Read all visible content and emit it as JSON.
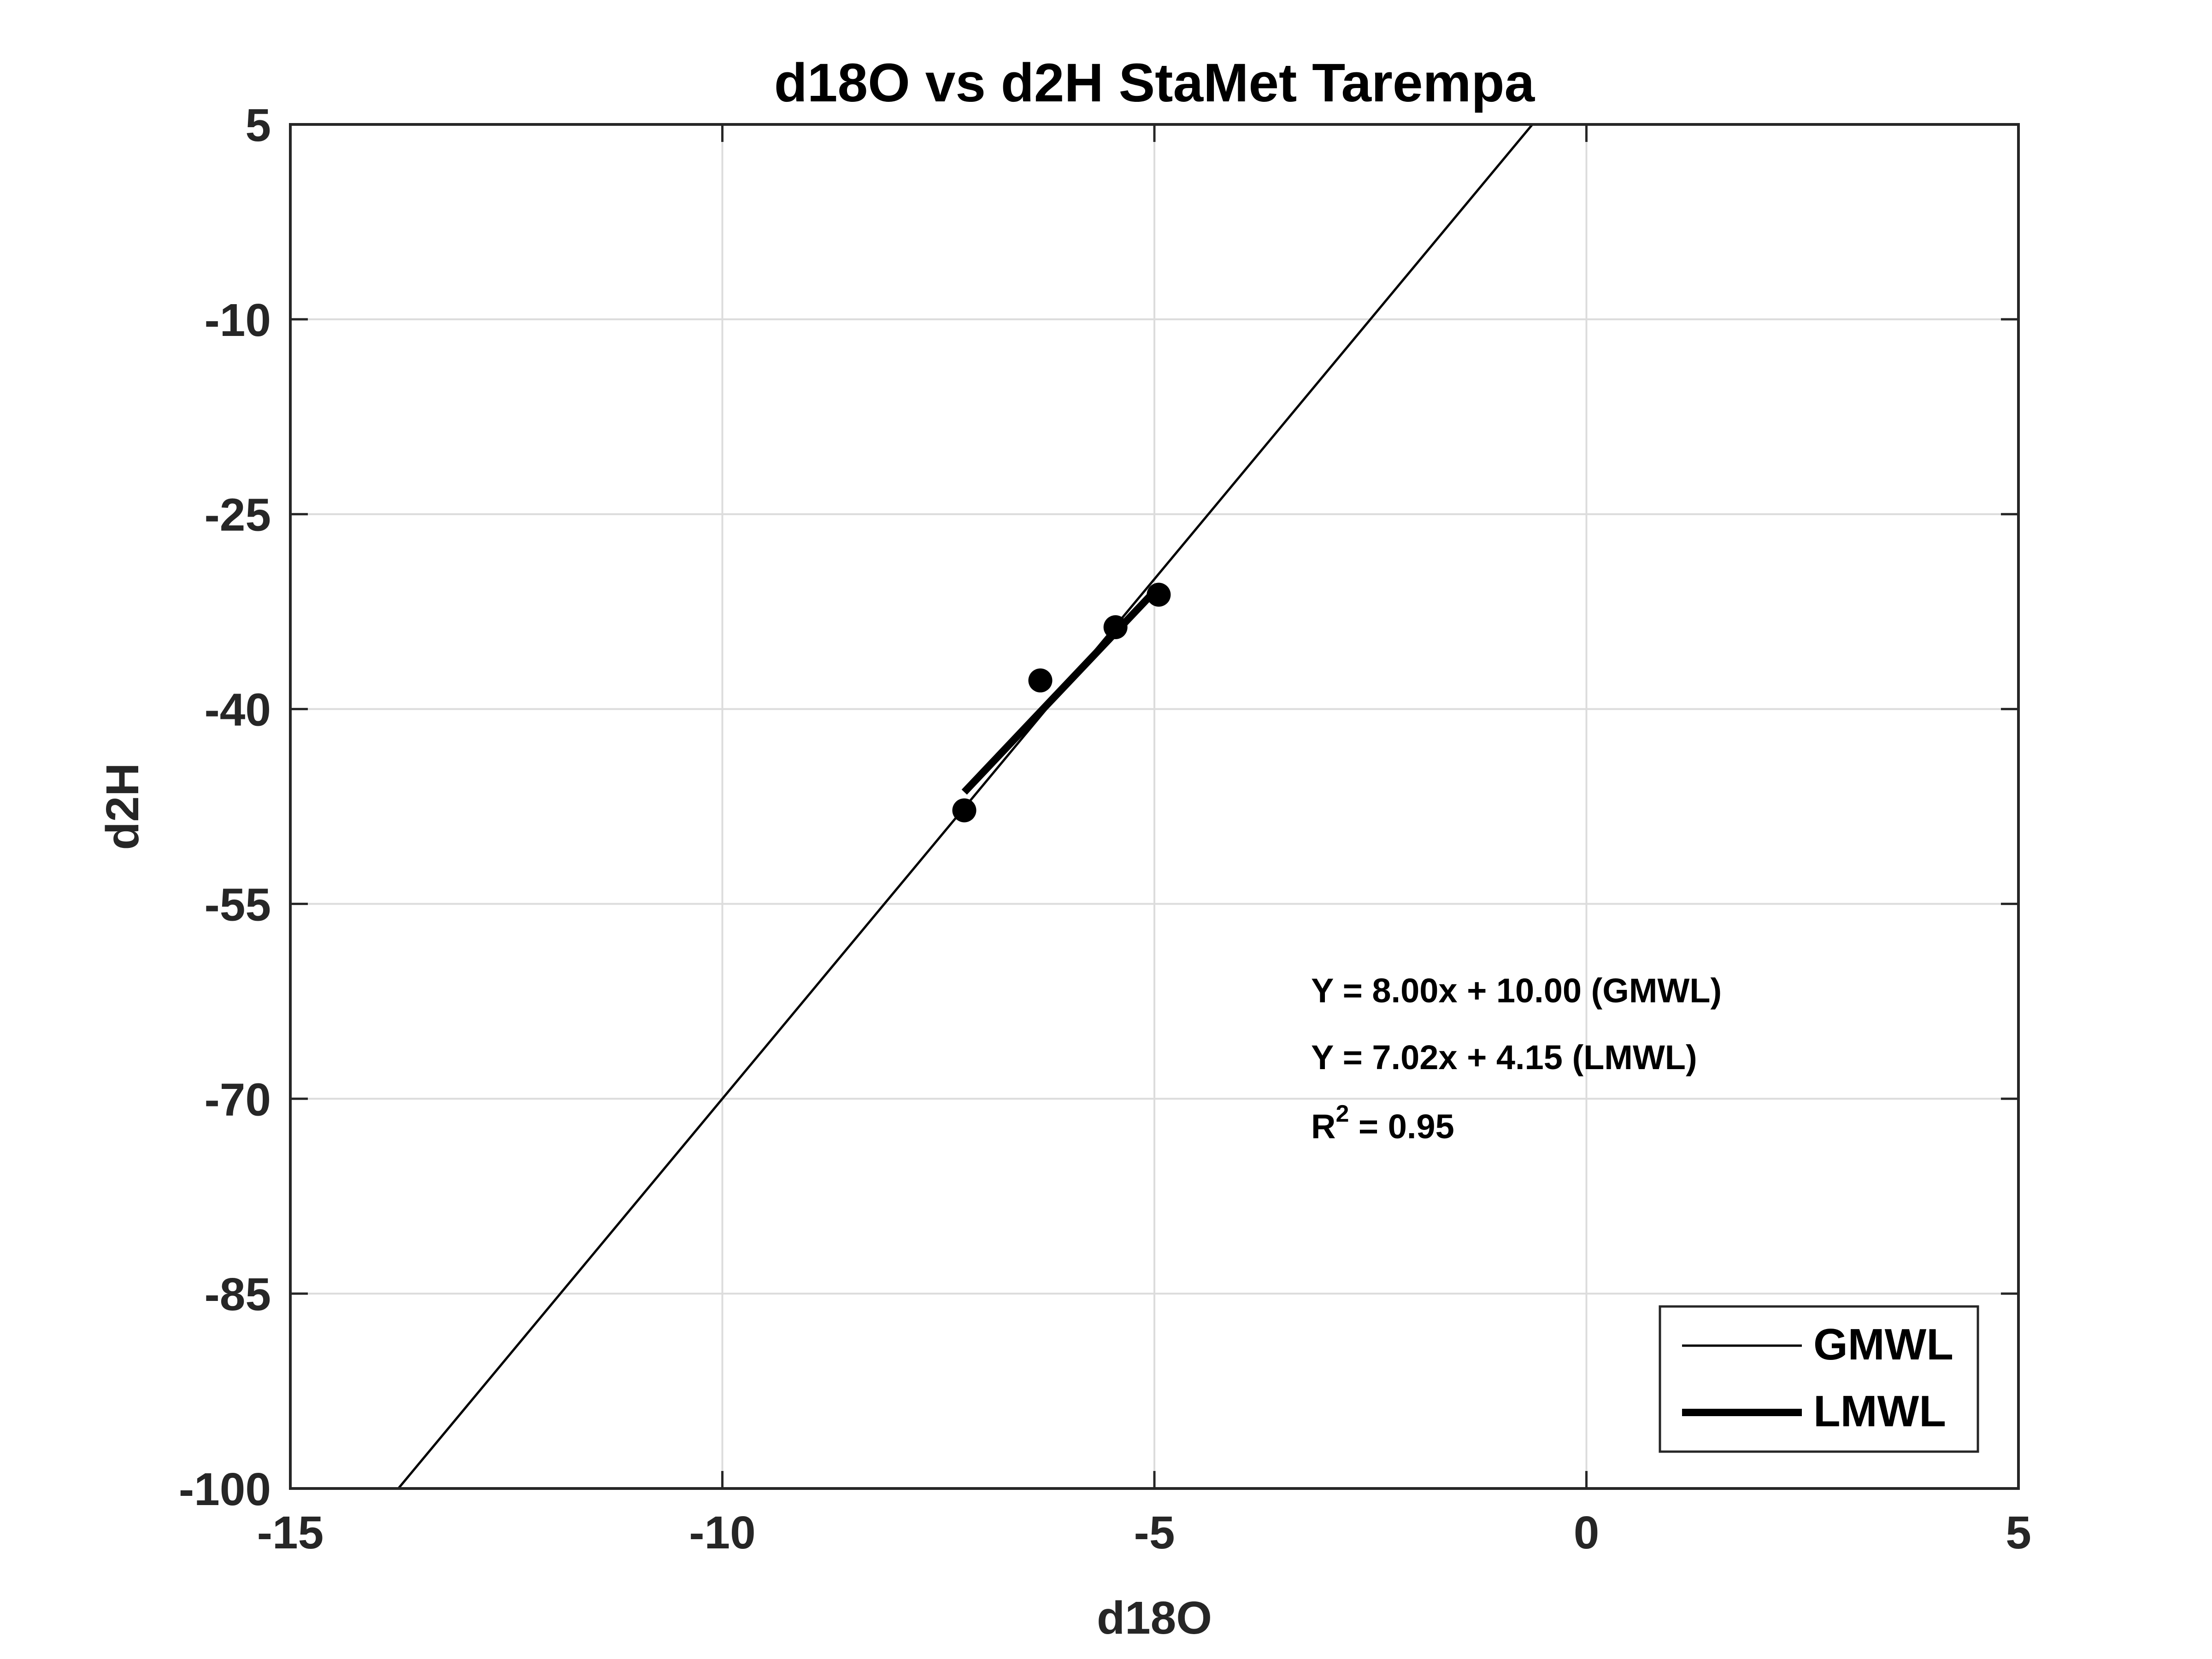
{
  "chart_data": {
    "type": "scatter",
    "title": "d18O vs d2H StaMet Tarempa",
    "xlabel": "d18O",
    "ylabel": "d2H",
    "xlim": [
      -15,
      5
    ],
    "ylim": [
      -100,
      5
    ],
    "xticks": [
      -15,
      -10,
      -5,
      0,
      5
    ],
    "yticks": [
      5,
      -10,
      -25,
      -40,
      -55,
      -70,
      -85,
      -100
    ],
    "grid": true,
    "points": [
      {
        "x": -7.2,
        "y": -47.8
      },
      {
        "x": -6.32,
        "y": -37.8
      },
      {
        "x": -5.45,
        "y": -33.7
      },
      {
        "x": -4.95,
        "y": -31.2
      }
    ],
    "lines": [
      {
        "name": "GMWL",
        "slope": 8.0,
        "intercept": 10.0,
        "x_range": [
          -13.75,
          -0.62
        ],
        "width": "thin"
      },
      {
        "name": "LMWL",
        "slope": 7.02,
        "intercept": 4.15,
        "x_range": [
          -7.2,
          -4.95
        ],
        "width": "thick"
      }
    ],
    "annotations": [
      "Y = 8.00x + 10.00 (GMWL)",
      "Y = 7.02x + 4.15 (LMWL)"
    ],
    "r2_label": {
      "base": "R",
      "sup": "2",
      "rest": " = 0.95"
    },
    "legend": {
      "position": "bottom-right",
      "entries": [
        "GMWL",
        "LMWL"
      ]
    },
    "colors": {
      "line": "#000000",
      "grid": "#dcdcdc",
      "text": "#262626",
      "axis": "#262626"
    }
  }
}
